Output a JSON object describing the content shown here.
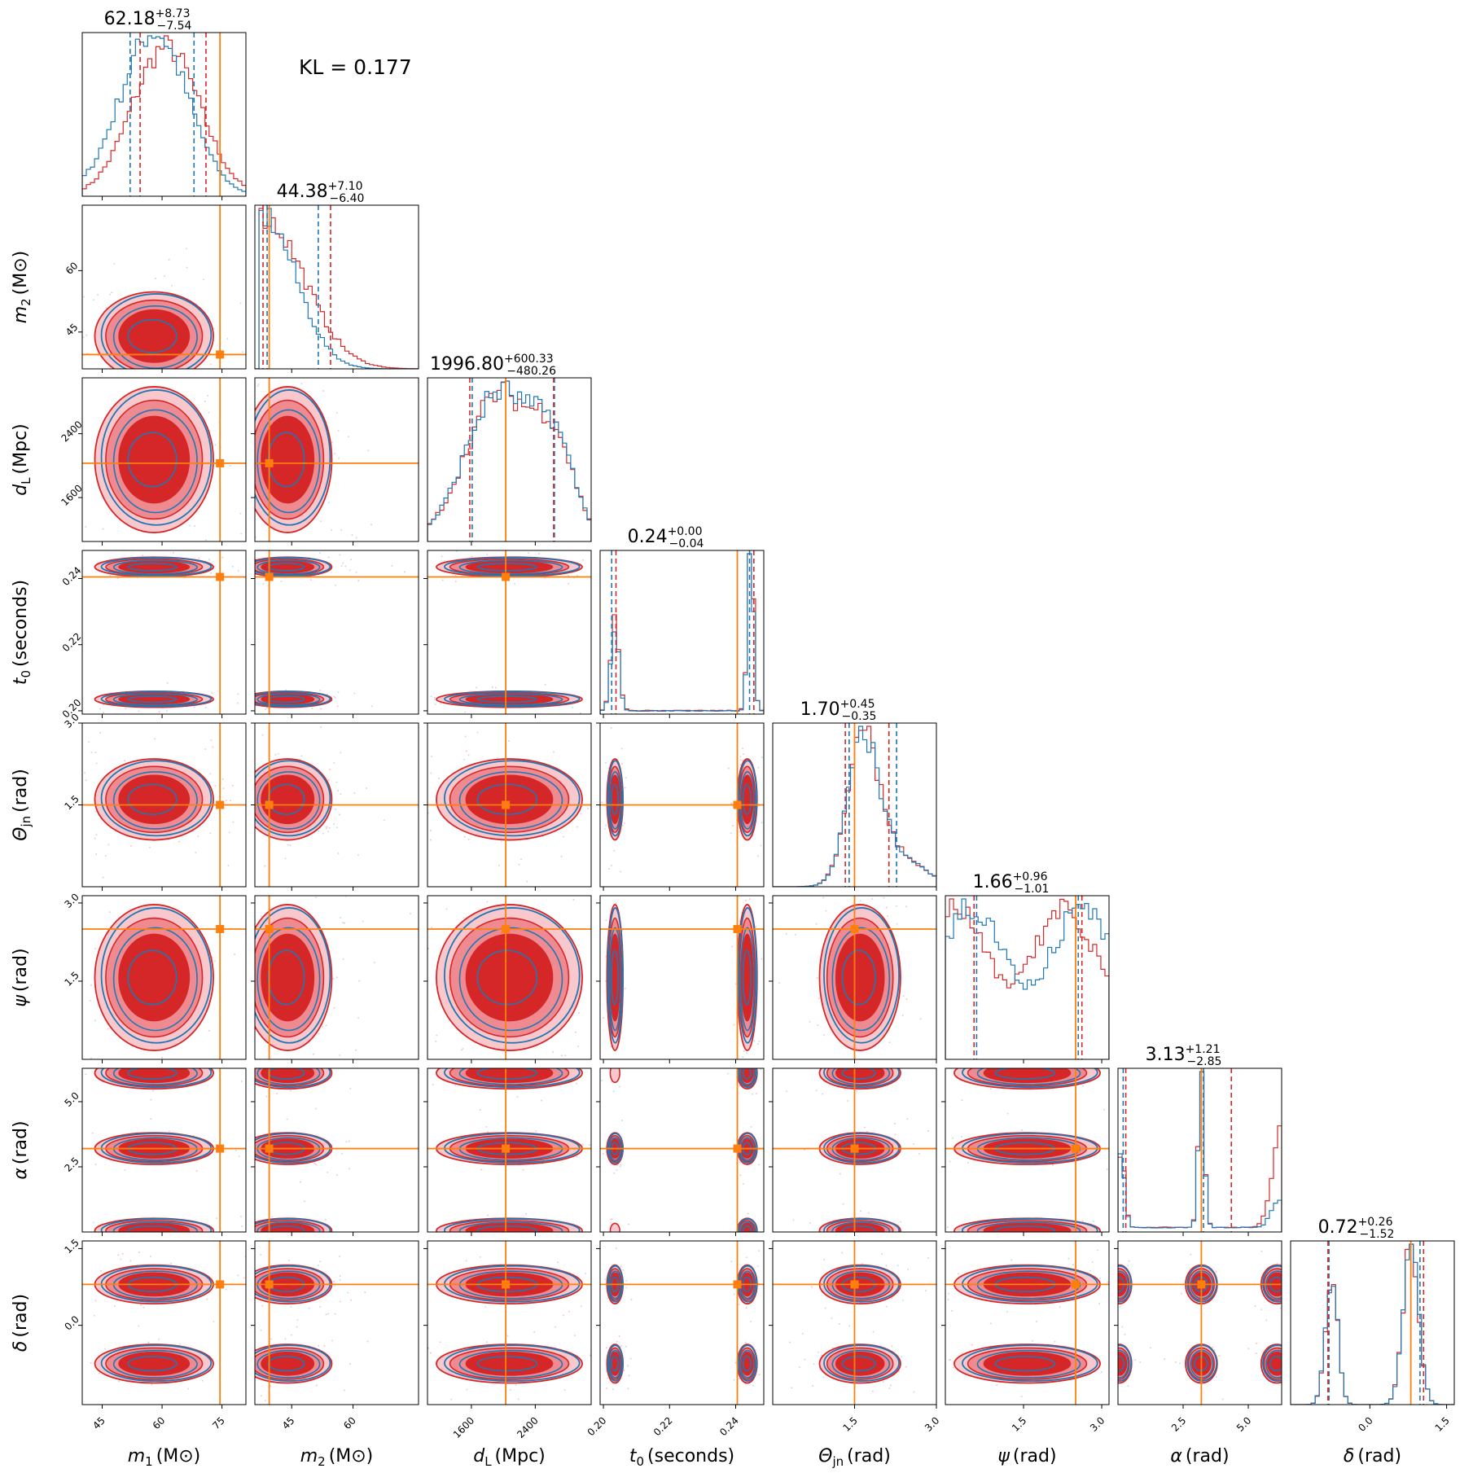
{
  "figure": {
    "kl_text": "KL = 0.177"
  },
  "colors": {
    "posterior_a": "#1f77b4",
    "posterior_b": "#d62728",
    "truth": "#ff7f0e"
  },
  "chart_data": {
    "type": "corner",
    "parameters": [
      {
        "key": "m1",
        "label": "m1 (M⊙)",
        "symbol": "m",
        "sub": "1",
        "unit": "(M⊙)",
        "range": [
          40,
          81
        ],
        "ticks": [
          45,
          60,
          75
        ],
        "truth": 74.5,
        "summary": {
          "median": "62.18",
          "plus": "+8.73",
          "minus": "−7.54"
        },
        "q_a": [
          52,
          68
        ],
        "q_b": [
          54.5,
          71
        ]
      },
      {
        "key": "m2",
        "label": "m2 (M⊙)",
        "symbol": "m",
        "sub": "2",
        "unit": "(M⊙)",
        "range": [
          36,
          76
        ],
        "ticks": [
          45,
          60
        ],
        "truth": 39.5,
        "summary": {
          "median": "44.38",
          "plus": "+7.10",
          "minus": "−6.40"
        },
        "q_a": [
          39,
          51.5
        ],
        "q_b": [
          38,
          54.5
        ]
      },
      {
        "key": "dL",
        "label": "dL (Mpc)",
        "symbol": "d",
        "sub": "L",
        "unit": "(Mpc)",
        "range": [
          1050,
          3100
        ],
        "ticks": [
          1600,
          2400
        ],
        "truth": 2030,
        "summary": {
          "median": "1996.80",
          "plus": "+600.33",
          "minus": "−480.26"
        },
        "q_a": [
          1610,
          2640
        ],
        "q_b": [
          1580,
          2630
        ]
      },
      {
        "key": "t0",
        "label": "t0 (seconds)",
        "symbol": "t",
        "sub": "0",
        "unit": "(seconds)",
        "range": [
          0.199,
          0.2485
        ],
        "ticks": [
          0.2,
          0.22,
          0.24
        ],
        "tick_text": [
          "0.20",
          "0.22",
          "0.24"
        ],
        "truth": 0.2405,
        "summary": {
          "median": "0.24",
          "plus": "+0.00",
          "minus": "−0.04"
        },
        "q_a": [
          0.2025,
          0.2442
        ],
        "q_b": [
          0.2038,
          0.2455
        ]
      },
      {
        "key": "theta",
        "label": "Θjn (rad)",
        "symbol": "Θ",
        "sub": "jn",
        "unit": "(rad)",
        "range": [
          0,
          3.0
        ],
        "ticks": [
          1.5,
          3.0
        ],
        "tick_text": [
          "1.5",
          "3.0"
        ],
        "truth": 1.5,
        "summary": {
          "median": "1.70",
          "plus": "+0.45",
          "minus": "−0.35"
        },
        "q_a": [
          1.4,
          2.27
        ],
        "q_b": [
          1.33,
          2.13
        ]
      },
      {
        "key": "psi",
        "label": "ψ (rad)",
        "symbol": "ψ",
        "sub": "",
        "unit": "(rad)",
        "range": [
          0,
          3.14
        ],
        "ticks": [
          1.5,
          3.0
        ],
        "tick_text": [
          "1.5",
          "3.0"
        ],
        "truth": 2.5,
        "summary": {
          "median": "1.66",
          "plus": "+0.96",
          "minus": "−1.01"
        },
        "q_a": [
          0.6,
          2.55
        ],
        "q_b": [
          0.55,
          2.62
        ]
      },
      {
        "key": "alpha",
        "label": "α (rad)",
        "symbol": "α",
        "sub": "",
        "unit": "(rad)",
        "range": [
          0,
          6.28
        ],
        "ticks": [
          2.5,
          5.0
        ],
        "tick_text": [
          "2.5",
          "5.0"
        ],
        "truth": 3.2,
        "summary": {
          "median": "3.13",
          "plus": "+1.21",
          "minus": "−2.85"
        },
        "q_a": [
          0.2,
          3.28
        ],
        "q_b": [
          0.3,
          4.35
        ]
      },
      {
        "key": "delta",
        "label": "δ (rad)",
        "symbol": "δ",
        "sub": "",
        "unit": "(rad)",
        "range": [
          -1.55,
          1.65
        ],
        "ticks": [
          0.0,
          1.5
        ],
        "tick_text": [
          "0.0",
          "1.5"
        ],
        "truth": 0.8,
        "summary": {
          "median": "0.72",
          "plus": "+0.26",
          "minus": "−1.52"
        },
        "q_a": [
          -0.8,
          0.98
        ],
        "q_b": [
          -0.82,
          1.05
        ]
      }
    ]
  }
}
